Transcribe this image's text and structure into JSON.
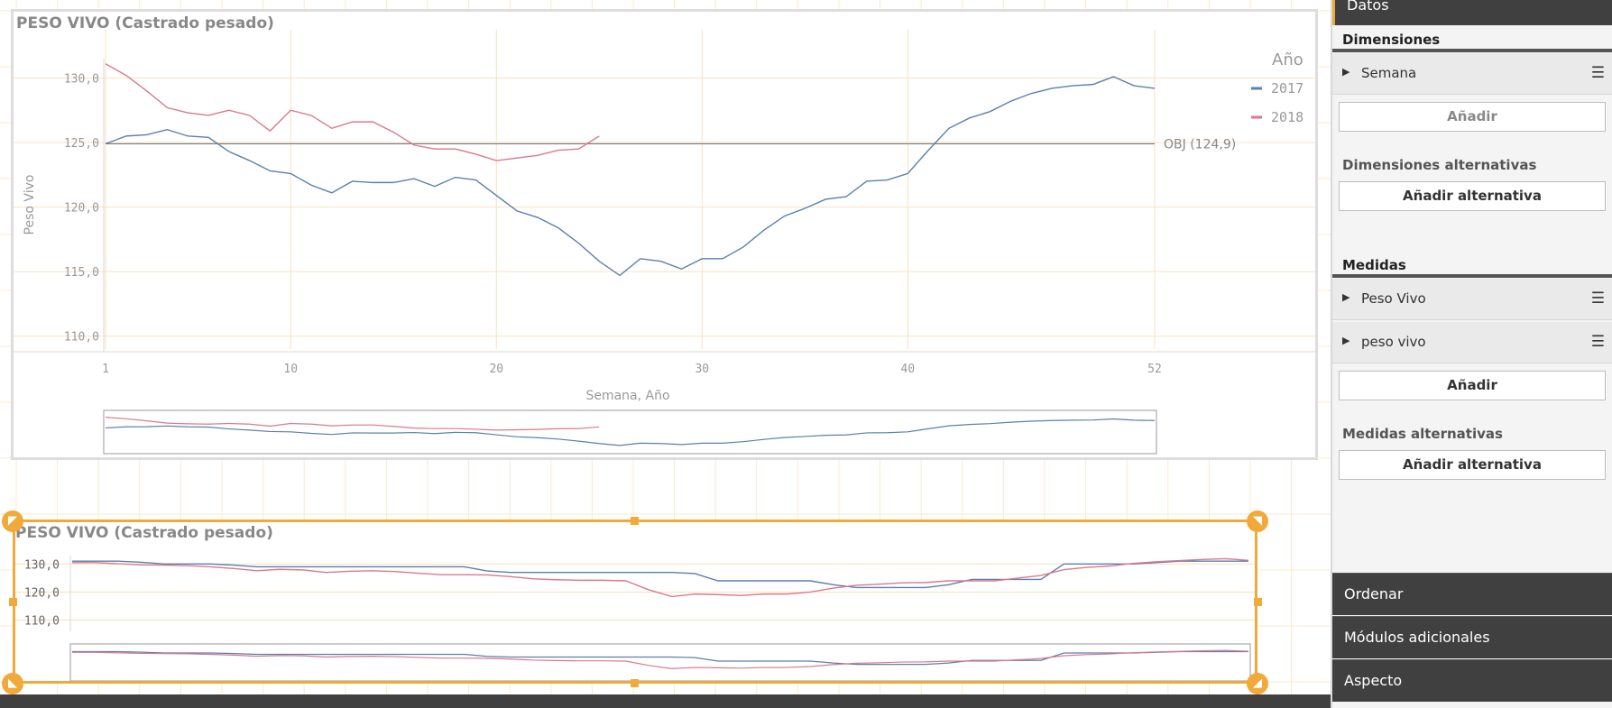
{
  "chart_data": [
    {
      "type": "line",
      "title": "PESO VIVO (Castrado pesado)",
      "xlabel": "Semana, Año",
      "ylabel": "Peso Vivo",
      "x_ticks": [
        "1",
        "10",
        "20",
        "30",
        "40",
        "52"
      ],
      "y_ticks": [
        "130,0",
        "125,0",
        "120,0",
        "115,0",
        "110,0"
      ],
      "ylim": [
        109,
        131.5
      ],
      "xlim": [
        1,
        52
      ],
      "legend_title": "Año",
      "legend_position": "right",
      "reference_line": {
        "label": "OBJ (124,9)",
        "value": 124.9
      },
      "series": [
        {
          "name": "2017",
          "color": "#5b7fae",
          "x": [
            1,
            2,
            3,
            4,
            5,
            6,
            7,
            8,
            9,
            10,
            11,
            12,
            13,
            14,
            15,
            16,
            17,
            18,
            19,
            20,
            21,
            22,
            23,
            24,
            25,
            26,
            27,
            28,
            29,
            30,
            31,
            32,
            33,
            34,
            35,
            36,
            37,
            38,
            39,
            40,
            41,
            42,
            43,
            44,
            45,
            46,
            47,
            48,
            49,
            50,
            51,
            52
          ],
          "values": [
            124.9,
            125.5,
            125.6,
            126.0,
            125.5,
            125.4,
            124.3,
            123.6,
            122.8,
            122.6,
            121.7,
            121.1,
            122.0,
            121.9,
            121.9,
            122.2,
            121.6,
            122.3,
            122.1,
            120.9,
            119.7,
            119.2,
            118.4,
            117.2,
            115.8,
            114.7,
            116.0,
            115.8,
            115.2,
            116.0,
            116.0,
            116.9,
            118.2,
            119.3,
            119.9,
            120.6,
            120.8,
            122.0,
            122.1,
            122.6,
            124.4,
            126.1,
            126.9,
            127.4,
            128.2,
            128.8,
            129.2,
            129.4,
            129.5,
            130.1,
            129.4,
            129.2
          ]
        },
        {
          "name": "2018",
          "color": "#d97a8c",
          "x": [
            1,
            2,
            3,
            4,
            5,
            6,
            7,
            8,
            9,
            10,
            11,
            12,
            13,
            14,
            15,
            16,
            17,
            18,
            19,
            20,
            21,
            22,
            23,
            24,
            25
          ],
          "values": [
            131.1,
            130.2,
            129.0,
            127.7,
            127.3,
            127.1,
            127.5,
            127.1,
            125.9,
            127.5,
            127.1,
            126.1,
            126.6,
            126.6,
            125.8,
            124.8,
            124.5,
            124.5,
            124.1,
            123.6,
            123.8,
            124.0,
            124.4,
            124.5,
            125.5
          ]
        }
      ]
    },
    {
      "type": "line",
      "title": "PESO VIVO (Castrado pesado)",
      "y_ticks": [
        "130,0",
        "120,0",
        "110,0"
      ],
      "ylim": [
        106,
        133
      ],
      "xlim": [
        1,
        52
      ],
      "series": [
        {
          "name": "",
          "color": "#5b7fae",
          "x": [
            1,
            2,
            3,
            4,
            5,
            6,
            7,
            8,
            9,
            10,
            11,
            12,
            13,
            14,
            15,
            16,
            17,
            18,
            19,
            20,
            21,
            22,
            23,
            24,
            25,
            26,
            27,
            28,
            29,
            30,
            31,
            32,
            33,
            34,
            35,
            36,
            37,
            38,
            39,
            40,
            41,
            42,
            43,
            44,
            45,
            46,
            47,
            48,
            49,
            50,
            51,
            52
          ],
          "values": [
            131.0,
            131.0,
            131.0,
            130.6,
            130.0,
            130.0,
            130.0,
            129.6,
            129.0,
            129.0,
            129.0,
            129.0,
            129.0,
            129.0,
            129.0,
            129.0,
            129.0,
            129.0,
            127.5,
            127.0,
            127.0,
            127.0,
            127.0,
            127.0,
            127.0,
            127.0,
            127.0,
            126.6,
            124.0,
            124.0,
            124.0,
            124.0,
            124.0,
            122.6,
            121.6,
            121.6,
            121.6,
            121.6,
            122.6,
            124.5,
            124.5,
            124.5,
            124.5,
            130.0,
            130.0,
            130.0,
            130.0,
            130.5,
            131.0,
            131.0,
            131.0,
            131.0
          ]
        },
        {
          "name": "",
          "color": "#d97a8c",
          "x": [
            1,
            2,
            3,
            4,
            5,
            6,
            7,
            8,
            9,
            10,
            11,
            12,
            13,
            14,
            15,
            16,
            17,
            18,
            19,
            20,
            21,
            22,
            23,
            24,
            25,
            26,
            27,
            28,
            29,
            30,
            31,
            32,
            33,
            34,
            35,
            36,
            37,
            38,
            39,
            40,
            41,
            42,
            43,
            44,
            45,
            46,
            47,
            48,
            49,
            50,
            51,
            52
          ],
          "values": [
            130.5,
            130.5,
            130.1,
            129.7,
            129.6,
            129.4,
            129.0,
            128.4,
            127.6,
            128.1,
            127.9,
            127.0,
            127.4,
            127.6,
            127.3,
            126.7,
            126.2,
            126.2,
            126.1,
            125.5,
            124.7,
            124.4,
            124.2,
            124.2,
            124.0,
            120.8,
            118.4,
            119.3,
            119.1,
            118.8,
            119.3,
            119.3,
            120.0,
            121.4,
            122.4,
            122.8,
            123.3,
            123.4,
            124.0,
            124.0,
            124.0,
            125.0,
            125.9,
            128.0,
            128.8,
            129.3,
            130.2,
            130.8,
            131.2,
            131.6,
            131.9,
            131.3
          ]
        }
      ]
    }
  ],
  "panel": {
    "datos_label": "Datos",
    "dimensiones_label": "Dimensiones",
    "dimension_field": "Semana",
    "add_dimension_label": "Añadir",
    "alt_dimensiones_label": "Dimensiones alternativas",
    "add_alt_dimension_label": "Añadir alternativa",
    "medidas_label": "Medidas",
    "measure_fields": [
      "Peso Vivo",
      "peso vivo"
    ],
    "add_measure_label": "Añadir",
    "alt_medidas_label": "Medidas alternativas",
    "add_alt_measure_label": "Añadir alternativa",
    "tabs": [
      "Ordenar",
      "Módulos adicionales",
      "Aspecto"
    ]
  },
  "icons": {
    "expand": "triangle-right-icon",
    "menu": "hamburger-menu-icon",
    "resize": "resize-arrow-icon"
  },
  "colors": {
    "accent": "#f2a93b",
    "dark_panel": "#404040",
    "series_2017": "#5b7fae",
    "series_2018": "#d97a8c"
  }
}
